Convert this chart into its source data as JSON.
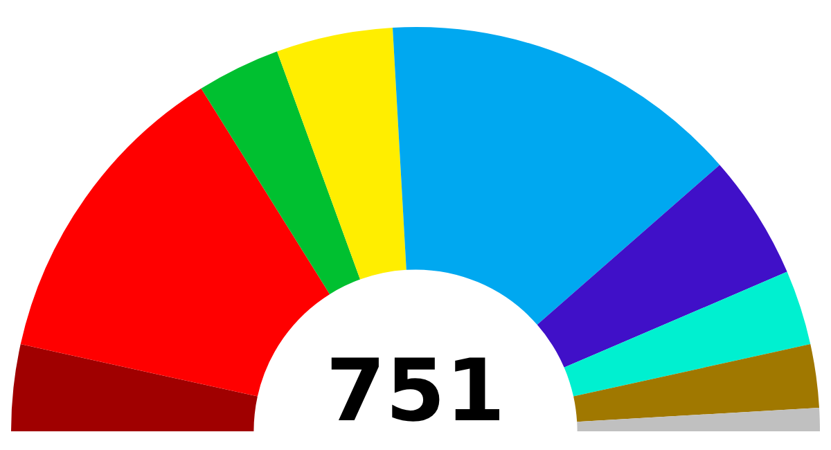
{
  "chart_data": {
    "type": "donut",
    "categories": [
      null,
      null,
      null,
      null,
      null,
      null,
      null,
      null,
      null
    ],
    "values": [
      6.92,
      25.3,
      6.66,
      9.32,
      28.9,
      9.99,
      5.99,
      5.06,
      1.86
    ],
    "colors": [
      "#a00000",
      "#ff0000",
      "#00c030",
      "#ffee00",
      "#00a8f0",
      "#4010c8",
      "#00f0d0",
      "#a07800",
      "#c0c0c0"
    ],
    "annotations": [
      "751"
    ],
    "legend": false
  }
}
